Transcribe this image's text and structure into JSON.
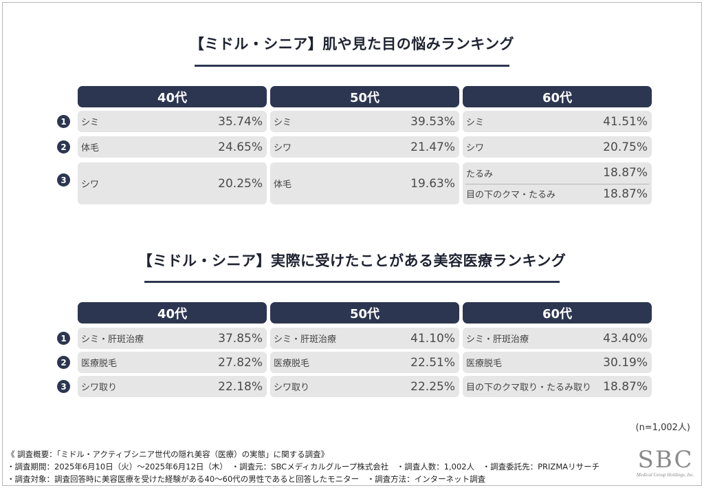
{
  "chart_data": [
    {
      "type": "table",
      "title": "【ミドル・シニア】肌や見た目の悩みランキング",
      "columns": [
        "40代",
        "50代",
        "60代"
      ],
      "ranks": [
        "1",
        "2",
        "3"
      ],
      "cells": [
        [
          [
            {
              "label": "シミ",
              "value": "35.74%"
            }
          ],
          [
            {
              "label": "シミ",
              "value": "39.53%"
            }
          ],
          [
            {
              "label": "シミ",
              "value": "41.51%"
            }
          ]
        ],
        [
          [
            {
              "label": "体毛",
              "value": "24.65%"
            }
          ],
          [
            {
              "label": "シワ",
              "value": "21.47%"
            }
          ],
          [
            {
              "label": "シワ",
              "value": "20.75%"
            }
          ]
        ],
        [
          [
            {
              "label": "シワ",
              "value": "20.25%"
            }
          ],
          [
            {
              "label": "体毛",
              "value": "19.63%"
            }
          ],
          [
            {
              "label": "たるみ",
              "value": "18.87%"
            },
            {
              "label": "目の下のクマ・たるみ",
              "value": "18.87%"
            }
          ]
        ]
      ]
    },
    {
      "type": "table",
      "title": "【ミドル・シニア】実際に受けたことがある美容医療ランキング",
      "columns": [
        "40代",
        "50代",
        "60代"
      ],
      "ranks": [
        "1",
        "2",
        "3"
      ],
      "cells": [
        [
          [
            {
              "label": "シミ・肝斑治療",
              "value": "37.85%"
            }
          ],
          [
            {
              "label": "シミ・肝斑治療",
              "value": "41.10%"
            }
          ],
          [
            {
              "label": "シミ・肝斑治療",
              "value": "43.40%"
            }
          ]
        ],
        [
          [
            {
              "label": "医療脱毛",
              "value": "27.82%"
            }
          ],
          [
            {
              "label": "医療脱毛",
              "value": "22.51%"
            }
          ],
          [
            {
              "label": "医療脱毛",
              "value": "30.19%"
            }
          ]
        ],
        [
          [
            {
              "label": "シワ取り",
              "value": "22.18%"
            }
          ],
          [
            {
              "label": "シワ取り",
              "value": "22.25%"
            }
          ],
          [
            {
              "label": "目の下のクマ取り・たるみ取り",
              "value": "18.87%"
            }
          ]
        ]
      ]
    }
  ],
  "sample_size": "(n=1,002人)",
  "footnotes": {
    "line1": "《 調査概要：「ミドル・アクティブシニア世代の隠れ美容（医療）の実態」に関する調査》",
    "line2": "・調査期間：2025年6月10日（火）〜2025年6月12日（木）　・調査元：SBCメディカルグループ株式会社　・調査人数：1,002人　・調査委託先：PRIZMAリサーチ",
    "line3": "・調査対象：調査回答時に美容医療を受けた経験がある40〜60代の男性であると回答したモニター　・調査方法：インターネット調査"
  },
  "logo": {
    "main": "SBC",
    "sub": "Medical Group Holdings, Inc."
  },
  "colors": {
    "header": "#2c3650",
    "cell": "#e6e6e6"
  }
}
